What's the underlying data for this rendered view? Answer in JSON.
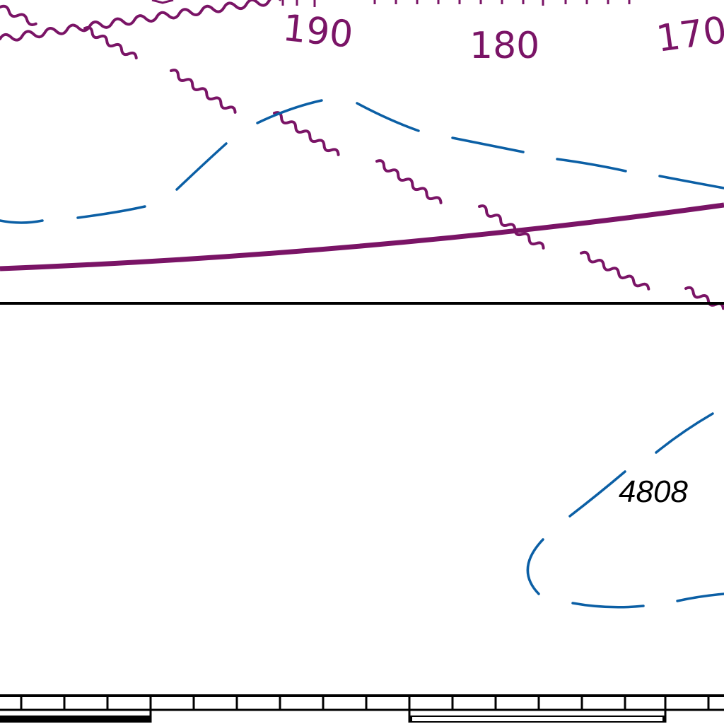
{
  "compass": {
    "bearing_labels": [
      "190",
      "180",
      "170"
    ]
  },
  "soundings": [
    {
      "label": "4808"
    }
  ],
  "colors": {
    "compass_rose": "#7a1466",
    "depth_contour": "#0b5fa5",
    "neatline": "#000000",
    "background": "#ffffff"
  }
}
